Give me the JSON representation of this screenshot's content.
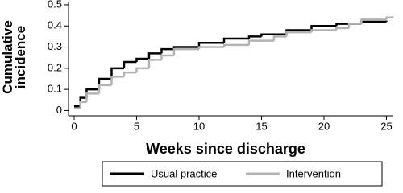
{
  "chart_data": {
    "type": "step",
    "x_label": "Weeks since discharge",
    "y_label": "Cumulative incidence",
    "xlim": [
      -0.45,
      25.55
    ],
    "xticks": [
      0,
      5,
      10,
      15,
      20,
      25
    ],
    "ylim": [
      -0.025,
      0.515
    ],
    "yticks": [
      0,
      0.1,
      0.2,
      0.3,
      0.4,
      0.5
    ],
    "grid": false,
    "legend": "bottom",
    "series": [
      {
        "name": "Usual practice",
        "color": "#000000",
        "x": [
          0,
          0.5,
          1,
          2,
          3,
          4,
          5,
          6,
          7,
          8,
          10,
          12,
          14,
          15,
          17,
          19,
          21,
          23,
          25
        ],
        "values": [
          0.02,
          0.06,
          0.1,
          0.15,
          0.2,
          0.23,
          0.245,
          0.27,
          0.29,
          0.3,
          0.32,
          0.34,
          0.35,
          0.36,
          0.38,
          0.4,
          0.41,
          0.42,
          0.425
        ]
      },
      {
        "name": "Intervention",
        "color": "#b3b3b3",
        "x": [
          0,
          0.5,
          1,
          2,
          3,
          4,
          5,
          6,
          7,
          8,
          10,
          12,
          14,
          16,
          17,
          19,
          21,
          22,
          23,
          25,
          25.5
        ],
        "values": [
          0.01,
          0.04,
          0.08,
          0.12,
          0.16,
          0.18,
          0.2,
          0.24,
          0.26,
          0.29,
          0.3,
          0.31,
          0.33,
          0.35,
          0.37,
          0.38,
          0.39,
          0.41,
          0.43,
          0.44,
          0.445
        ]
      }
    ]
  }
}
